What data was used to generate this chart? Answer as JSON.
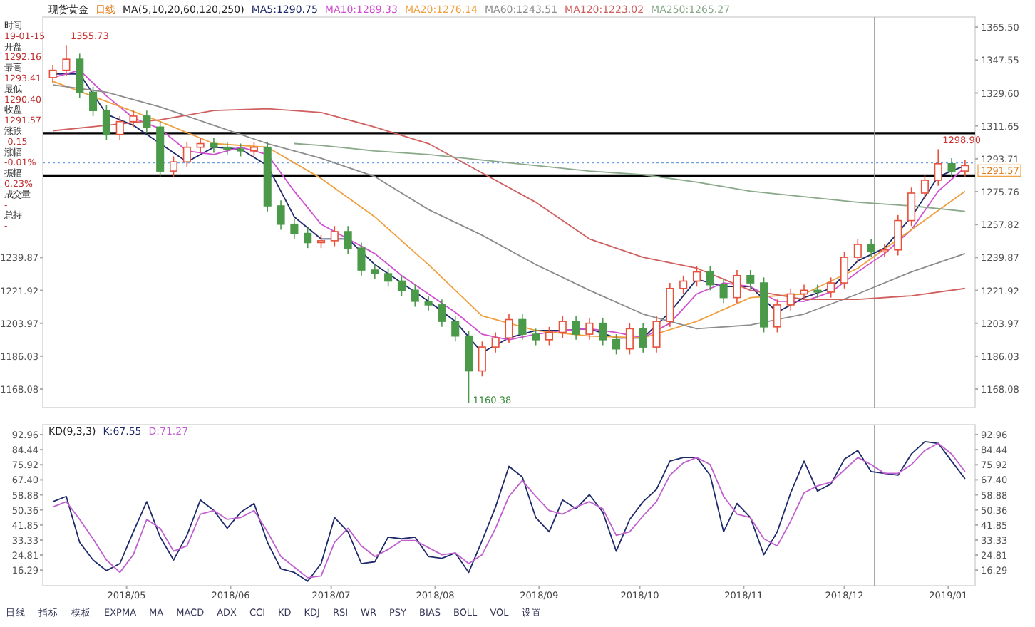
{
  "chart_data": [
    {
      "type": "candlestick",
      "title": "现货黄金",
      "subtitle": "日线",
      "legend_title": "MA(5,10,20,60,120,250)",
      "legend": "top",
      "tick_labels": "y",
      "x": [
        "2018-04-09",
        "2018-04-13",
        "2018-04-17",
        "2018-04-21",
        "2018-04-25",
        "2018-04-29",
        "2018-05-03",
        "2018-05-07",
        "2018-05-11",
        "2018-05-15",
        "2018-05-19",
        "2018-05-23",
        "2018-05-27",
        "2018-05-31",
        "2018-06-04",
        "2018-06-08",
        "2018-06-12",
        "2018-06-16",
        "2018-06-20",
        "2018-06-24",
        "2018-06-28",
        "2018-07-02",
        "2018-07-06",
        "2018-07-10",
        "2018-07-14",
        "2018-07-18",
        "2018-07-22",
        "2018-07-26",
        "2018-07-30",
        "2018-08-03",
        "2018-08-07",
        "2018-08-11",
        "2018-08-15",
        "2018-08-19",
        "2018-08-23",
        "2018-08-27",
        "2018-08-31",
        "2018-09-04",
        "2018-09-08",
        "2018-09-12",
        "2018-09-16",
        "2018-09-20",
        "2018-09-24",
        "2018-09-28",
        "2018-10-02",
        "2018-10-06",
        "2018-10-10",
        "2018-10-14",
        "2018-10-18",
        "2018-10-22",
        "2018-10-26",
        "2018-10-30",
        "2018-11-03",
        "2018-11-07",
        "2018-11-11",
        "2018-11-15",
        "2018-11-19",
        "2018-11-23",
        "2018-11-27",
        "2018-12-01",
        "2018-12-05",
        "2018-12-09",
        "2018-12-13",
        "2018-12-17",
        "2018-12-21",
        "2018-12-25",
        "2018-12-29",
        "2019-01-02",
        "2019-01-06"
      ],
      "ohlc": [
        [
          1338,
          1345,
          1335,
          1342
        ],
        [
          1342,
          1355.73,
          1339,
          1348
        ],
        [
          1348,
          1351,
          1327,
          1330
        ],
        [
          1330,
          1333,
          1317,
          1320
        ],
        [
          1320,
          1323,
          1304,
          1307
        ],
        [
          1307,
          1317,
          1304,
          1314
        ],
        [
          1314,
          1320,
          1311,
          1317
        ],
        [
          1317,
          1320,
          1308,
          1311
        ],
        [
          1311,
          1314,
          1284,
          1287
        ],
        [
          1287,
          1295,
          1284,
          1292
        ],
        [
          1292,
          1303,
          1289,
          1300
        ],
        [
          1300,
          1305,
          1297,
          1302
        ],
        [
          1302,
          1305,
          1297,
          1300
        ],
        [
          1300,
          1303,
          1296,
          1299
        ],
        [
          1299,
          1302,
          1295,
          1298
        ],
        [
          1298,
          1303,
          1295,
          1300
        ],
        [
          1300,
          1303,
          1265,
          1268
        ],
        [
          1268,
          1271,
          1255,
          1258
        ],
        [
          1258,
          1261,
          1250,
          1253
        ],
        [
          1253,
          1256,
          1245,
          1248
        ],
        [
          1248,
          1252,
          1245,
          1249
        ],
        [
          1249,
          1257,
          1246,
          1254
        ],
        [
          1254,
          1257,
          1242,
          1245
        ],
        [
          1245,
          1248,
          1230,
          1233
        ],
        [
          1233,
          1236,
          1228,
          1231
        ],
        [
          1231,
          1234,
          1224,
          1227
        ],
        [
          1227,
          1230,
          1219,
          1222
        ],
        [
          1222,
          1225,
          1213,
          1216
        ],
        [
          1216,
          1219,
          1211,
          1214
        ],
        [
          1214,
          1217,
          1202,
          1205
        ],
        [
          1205,
          1208,
          1194,
          1197
        ],
        [
          1197,
          1200,
          1160.38,
          1178
        ],
        [
          1178,
          1194,
          1175,
          1191
        ],
        [
          1191,
          1199,
          1188,
          1196
        ],
        [
          1196,
          1209,
          1193,
          1206
        ],
        [
          1206,
          1209,
          1195,
          1198
        ],
        [
          1198,
          1201,
          1192,
          1195
        ],
        [
          1195,
          1202,
          1192,
          1199
        ],
        [
          1199,
          1208,
          1196,
          1205
        ],
        [
          1205,
          1208,
          1195,
          1198
        ],
        [
          1198,
          1207,
          1195,
          1204
        ],
        [
          1204,
          1207,
          1192,
          1195
        ],
        [
          1195,
          1198,
          1187,
          1190
        ],
        [
          1190,
          1204,
          1187,
          1201
        ],
        [
          1201,
          1204,
          1188,
          1191
        ],
        [
          1191,
          1208,
          1188,
          1205
        ],
        [
          1205,
          1226,
          1202,
          1223
        ],
        [
          1223,
          1230,
          1220,
          1227
        ],
        [
          1227,
          1235,
          1224,
          1232
        ],
        [
          1232,
          1235,
          1222,
          1225
        ],
        [
          1225,
          1228,
          1215,
          1218
        ],
        [
          1218,
          1233,
          1215,
          1230
        ],
        [
          1230,
          1233,
          1223,
          1226
        ],
        [
          1226,
          1229,
          1199,
          1202
        ],
        [
          1202,
          1217,
          1199,
          1214
        ],
        [
          1214,
          1223,
          1211,
          1220
        ],
        [
          1220,
          1225,
          1217,
          1222
        ],
        [
          1222,
          1225,
          1218,
          1221
        ],
        [
          1221,
          1229,
          1218,
          1226
        ],
        [
          1226,
          1243,
          1223,
          1240
        ],
        [
          1240,
          1250,
          1237,
          1247
        ],
        [
          1247,
          1250,
          1240,
          1243
        ],
        [
          1243,
          1247,
          1240,
          1244
        ],
        [
          1244,
          1263,
          1241,
          1260
        ],
        [
          1260,
          1278,
          1257,
          1275
        ],
        [
          1275,
          1285,
          1272,
          1282
        ],
        [
          1282,
          1298.9,
          1279,
          1291
        ],
        [
          1291,
          1294,
          1284,
          1287
        ],
        [
          1287,
          1293,
          1284,
          1290
        ]
      ],
      "colors": [
        "#e8503a",
        "#e8503a",
        "#4a9a4a",
        "#4a9a4a",
        "#4a9a4a",
        "#e8503a",
        "#e8503a",
        "#4a9a4a",
        "#4a9a4a",
        "#e8503a",
        "#e8503a",
        "#e8503a",
        "#4a9a4a",
        "#4a9a4a",
        "#4a9a4a",
        "#e8503a",
        "#4a9a4a",
        "#4a9a4a",
        "#4a9a4a",
        "#4a9a4a",
        "#e8503a",
        "#e8503a",
        "#4a9a4a",
        "#4a9a4a",
        "#4a9a4a",
        "#4a9a4a",
        "#4a9a4a",
        "#4a9a4a",
        "#4a9a4a",
        "#4a9a4a",
        "#4a9a4a",
        "#4a9a4a",
        "#e8503a",
        "#e8503a",
        "#e8503a",
        "#4a9a4a",
        "#4a9a4a",
        "#e8503a",
        "#e8503a",
        "#4a9a4a",
        "#e8503a",
        "#4a9a4a",
        "#4a9a4a",
        "#e8503a",
        "#4a9a4a",
        "#e8503a",
        "#e8503a",
        "#e8503a",
        "#e8503a",
        "#4a9a4a",
        "#4a9a4a",
        "#e8503a",
        "#4a9a4a",
        "#4a9a4a",
        "#e8503a",
        "#e8503a",
        "#e8503a",
        "#4a9a4a",
        "#e8503a",
        "#e8503a",
        "#e8503a",
        "#4a9a4a",
        "#e8503a",
        "#e8503a",
        "#e8503a",
        "#e8503a",
        "#e8503a",
        "#4a9a4a",
        "#e8503a"
      ],
      "series": [
        {
          "type": "line",
          "name": "MA5:1290.75",
          "color": "#1f2a6b",
          "x": [
            "2018-04-09",
            "2018-04-17",
            "2018-04-25",
            "2018-05-03",
            "2018-05-11",
            "2018-05-19",
            "2018-05-27",
            "2018-06-04",
            "2018-06-12",
            "2018-06-20",
            "2018-06-28",
            "2018-07-06",
            "2018-07-14",
            "2018-07-22",
            "2018-07-30",
            "2018-08-07",
            "2018-08-15",
            "2018-08-23",
            "2018-08-31",
            "2018-09-08",
            "2018-09-16",
            "2018-09-24",
            "2018-10-02",
            "2018-10-10",
            "2018-10-18",
            "2018-10-26",
            "2018-11-03",
            "2018-11-11",
            "2018-11-19",
            "2018-11-27",
            "2018-12-05",
            "2018-12-13",
            "2018-12-21",
            "2018-12-29",
            "2019-01-06"
          ],
          "values": [
            1340,
            1340,
            1318,
            1312,
            1302,
            1292,
            1300,
            1299,
            1290,
            1262,
            1250,
            1250,
            1236,
            1226,
            1216,
            1205,
            1188,
            1196,
            1200,
            1200,
            1201,
            1196,
            1196,
            1210,
            1228,
            1224,
            1224,
            1210,
            1218,
            1223,
            1238,
            1245,
            1262,
            1284,
            1290
          ]
        },
        {
          "type": "line",
          "name": "MA10:1289.33",
          "color": "#d04fd0",
          "x": [
            "2018-04-09",
            "2018-04-17",
            "2018-04-25",
            "2018-05-03",
            "2018-05-11",
            "2018-05-19",
            "2018-05-27",
            "2018-06-04",
            "2018-06-12",
            "2018-06-20",
            "2018-06-28",
            "2018-07-06",
            "2018-07-14",
            "2018-07-22",
            "2018-07-30",
            "2018-08-07",
            "2018-08-15",
            "2018-08-23",
            "2018-08-31",
            "2018-09-08",
            "2018-09-16",
            "2018-09-24",
            "2018-10-02",
            "2018-10-10",
            "2018-10-18",
            "2018-10-26",
            "2018-11-03",
            "2018-11-11",
            "2018-11-19",
            "2018-11-27",
            "2018-12-05",
            "2018-12-13",
            "2018-12-21",
            "2018-12-29",
            "2019-01-06"
          ],
          "values": [
            1338,
            1342,
            1328,
            1316,
            1310,
            1298,
            1296,
            1300,
            1296,
            1276,
            1258,
            1250,
            1242,
            1230,
            1220,
            1210,
            1198,
            1195,
            1198,
            1200,
            1201,
            1199,
            1196,
            1204,
            1220,
            1226,
            1224,
            1216,
            1216,
            1221,
            1232,
            1242,
            1255,
            1276,
            1289
          ]
        },
        {
          "type": "line",
          "name": "MA20:1276.14",
          "color": "#f0a040",
          "x": [
            "2018-04-09",
            "2018-04-25",
            "2018-05-11",
            "2018-05-27",
            "2018-06-12",
            "2018-06-28",
            "2018-07-14",
            "2018-07-30",
            "2018-08-15",
            "2018-08-31",
            "2018-09-16",
            "2018-10-02",
            "2018-10-18",
            "2018-11-03",
            "2018-11-19",
            "2018-12-05",
            "2018-12-21",
            "2019-01-06"
          ],
          "values": [
            1336,
            1325,
            1314,
            1302,
            1300,
            1283,
            1262,
            1236,
            1208,
            1200,
            1197,
            1196,
            1205,
            1218,
            1220,
            1234,
            1255,
            1276
          ]
        },
        {
          "type": "line",
          "name": "MA60:1243.51",
          "color": "#8c8c8c",
          "x": [
            "2018-04-09",
            "2018-04-25",
            "2018-05-11",
            "2018-05-27",
            "2018-06-12",
            "2018-06-28",
            "2018-07-14",
            "2018-07-30",
            "2018-08-15",
            "2018-08-31",
            "2018-09-16",
            "2018-10-02",
            "2018-10-18",
            "2018-11-03",
            "2018-11-19",
            "2018-12-05",
            "2018-12-21",
            "2019-01-06"
          ],
          "values": [
            1334,
            1330,
            1322,
            1312,
            1302,
            1294,
            1284,
            1266,
            1252,
            1236,
            1222,
            1209,
            1201,
            1203,
            1209,
            1220,
            1232,
            1242
          ]
        },
        {
          "type": "line",
          "name": "MA120:1223.02",
          "color": "#d06060",
          "x": [
            "2018-04-09",
            "2018-04-25",
            "2018-05-11",
            "2018-05-27",
            "2018-06-12",
            "2018-06-28",
            "2018-07-14",
            "2018-07-30",
            "2018-08-15",
            "2018-08-31",
            "2018-09-16",
            "2018-10-02",
            "2018-10-18",
            "2018-11-03",
            "2018-11-19",
            "2018-12-05",
            "2018-12-21",
            "2019-01-06"
          ],
          "values": [
            1309,
            1312,
            1315,
            1320,
            1321,
            1319,
            1311,
            1302,
            1286,
            1270,
            1250,
            1240,
            1234,
            1222,
            1217,
            1217,
            1219,
            1223
          ]
        },
        {
          "type": "line",
          "name": "MA250:1265.27",
          "color": "#8aa88a",
          "x": [
            "2018-06-20",
            "2018-06-28",
            "2018-07-14",
            "2018-07-30",
            "2018-08-15",
            "2018-08-31",
            "2018-09-16",
            "2018-10-02",
            "2018-10-18",
            "2018-11-03",
            "2018-11-19",
            "2018-12-05",
            "2018-12-21",
            "2019-01-06"
          ],
          "values": [
            1302,
            1301,
            1298,
            1296,
            1293,
            1290,
            1287,
            1285,
            1281,
            1276,
            1273,
            1270,
            1268,
            1265
          ]
        }
      ],
      "xlim": [
        "2018-04-06",
        "2019-01-09"
      ],
      "ylim": [
        1158,
        1371
      ],
      "yticks": [
        1239.87,
        1221.92,
        1203.97,
        1186.03,
        1168.08
      ],
      "y2lim": [
        1158,
        1371
      ],
      "y2ticks": [
        {
          "value": 1365.5,
          "label": "1365.50"
        },
        1347.55,
        {
          "value": 1329.6,
          "label": "1329.60"
        },
        1311.65,
        1293.71,
        1275.76,
        1257.82,
        1239.87,
        1221.92,
        1203.97,
        1186.03,
        1168.08
      ],
      "ref_lines": [
        {
          "axis": "y",
          "value": 1307.7,
          "color": "#000000"
        },
        {
          "axis": "y",
          "value": 1284.6,
          "color": "#000000"
        },
        {
          "axis": "y",
          "value": 1291.57,
          "label": "1291.57",
          "color": "#6fa0e0",
          "line_style": "dotted"
        },
        {
          "axis": "x",
          "value": "2018-12-10",
          "color": "#9a9a9a"
        }
      ],
      "annotations": [
        "时间",
        "19-01-15",
        "开盘",
        "1292.16",
        "最高",
        "1293.41",
        "最低",
        "1290.40",
        "收盘",
        "1291.57",
        "涨跌",
        "-0.15",
        "涨幅",
        "-0.01%",
        "振幅",
        "0.23%",
        "成交量",
        "-",
        "总持",
        "-",
        {
          "text": "1355.73",
          "x": "2018-04-13",
          "y": 1355.73
        },
        {
          "text": "1160.38",
          "x": "2018-08-11",
          "y": 1160.38
        },
        {
          "text": "1298.90",
          "x": "2018-12-29",
          "y": 1298.9
        }
      ]
    },
    {
      "type": "line",
      "title": "KD(9,3,3)",
      "legend": "top left",
      "x": [
        "2018-04-09",
        "2018-04-13",
        "2018-04-17",
        "2018-04-21",
        "2018-04-25",
        "2018-04-29",
        "2018-05-03",
        "2018-05-07",
        "2018-05-11",
        "2018-05-15",
        "2018-05-19",
        "2018-05-23",
        "2018-05-27",
        "2018-05-31",
        "2018-06-04",
        "2018-06-08",
        "2018-06-12",
        "2018-06-16",
        "2018-06-20",
        "2018-06-24",
        "2018-06-28",
        "2018-07-02",
        "2018-07-06",
        "2018-07-10",
        "2018-07-14",
        "2018-07-18",
        "2018-07-22",
        "2018-07-26",
        "2018-07-30",
        "2018-08-03",
        "2018-08-07",
        "2018-08-11",
        "2018-08-15",
        "2018-08-19",
        "2018-08-23",
        "2018-08-27",
        "2018-08-31",
        "2018-09-04",
        "2018-09-08",
        "2018-09-12",
        "2018-09-16",
        "2018-09-20",
        "2018-09-24",
        "2018-09-28",
        "2018-10-02",
        "2018-10-06",
        "2018-10-10",
        "2018-10-14",
        "2018-10-18",
        "2018-10-22",
        "2018-10-26",
        "2018-10-30",
        "2018-11-03",
        "2018-11-07",
        "2018-11-11",
        "2018-11-15",
        "2018-11-19",
        "2018-11-23",
        "2018-11-27",
        "2018-12-01",
        "2018-12-05",
        "2018-12-09",
        "2018-12-13",
        "2018-12-17",
        "2018-12-21",
        "2018-12-25",
        "2018-12-29",
        "2019-01-02",
        "2019-01-06"
      ],
      "series": [
        {
          "name": "K:67.55",
          "color": "#1f2a6b",
          "values": [
            55,
            58,
            32,
            22,
            16,
            20,
            38,
            55,
            35,
            22,
            36,
            56,
            50,
            40,
            49,
            54,
            32,
            17,
            15,
            10,
            20,
            46,
            38,
            20,
            21,
            35,
            34,
            35,
            24,
            23,
            26,
            15,
            33,
            52,
            75,
            69,
            46,
            38,
            56,
            51,
            59,
            49,
            27,
            45,
            55,
            62,
            78,
            80,
            80,
            70,
            38,
            54,
            46,
            25,
            38,
            60,
            78,
            61,
            65,
            79,
            84,
            72,
            71,
            70,
            82,
            89,
            88,
            78,
            68
          ]
        },
        {
          "name": "D:71.27",
          "color": "#c060d0",
          "values": [
            52,
            55,
            45,
            34,
            22,
            15,
            25,
            45,
            40,
            27,
            30,
            48,
            50,
            45,
            46,
            50,
            38,
            24,
            18,
            12,
            13,
            32,
            40,
            30,
            24,
            28,
            33,
            33,
            29,
            25,
            26,
            20,
            25,
            40,
            58,
            67,
            58,
            50,
            48,
            52,
            55,
            51,
            36,
            38,
            47,
            55,
            70,
            77,
            80,
            76,
            58,
            48,
            46,
            34,
            30,
            44,
            60,
            64,
            66,
            73,
            80,
            76,
            71,
            71,
            76,
            84,
            88,
            82,
            72
          ]
        }
      ],
      "xlim": [
        "2018-04-06",
        "2019-01-09"
      ],
      "ylim": [
        7.5,
        98.6
      ],
      "yticks": [
        92.96,
        84.44,
        75.92,
        {
          "value": 67.4,
          "label": "67.40"
        },
        58.88,
        50.36,
        41.85,
        33.33,
        24.81,
        16.29
      ],
      "y2lim": [
        7.5,
        98.6
      ],
      "y2ticks": [
        92.96,
        84.44,
        75.92,
        {
          "value": 67.4,
          "label": "67.40"
        },
        58.88,
        50.36,
        41.85,
        33.33,
        24.81,
        16.29
      ],
      "xticks": [
        {
          "value": "2018-05-01",
          "label": "2018/05"
        },
        {
          "value": "2018-06-01",
          "label": "2018/06"
        },
        {
          "value": "2018-07-01",
          "label": "2018/07"
        },
        {
          "value": "2018-08-01",
          "label": "2018/08"
        },
        {
          "value": "2018-09-01",
          "label": "2018/09"
        },
        {
          "value": "2018-10-01",
          "label": "2018/10"
        },
        {
          "value": "2018-11-01",
          "label": "2018/11"
        },
        {
          "value": "2018-12-01",
          "label": "2018/12"
        },
        {
          "value": "2019-01-01",
          "label": "2019/01"
        }
      ],
      "ref_lines": [
        {
          "axis": "x",
          "value": "2018-12-10",
          "color": "#9a9a9a"
        }
      ],
      "annotations": [
        "日线",
        "指标",
        "模板",
        "EXPMA",
        "MA",
        "MACD",
        "ADX",
        "CCI",
        "KD",
        "KDJ",
        "RSI",
        "WR",
        "PSY",
        "BIAS",
        "BOLL",
        "VOL",
        "设置"
      ]
    }
  ]
}
